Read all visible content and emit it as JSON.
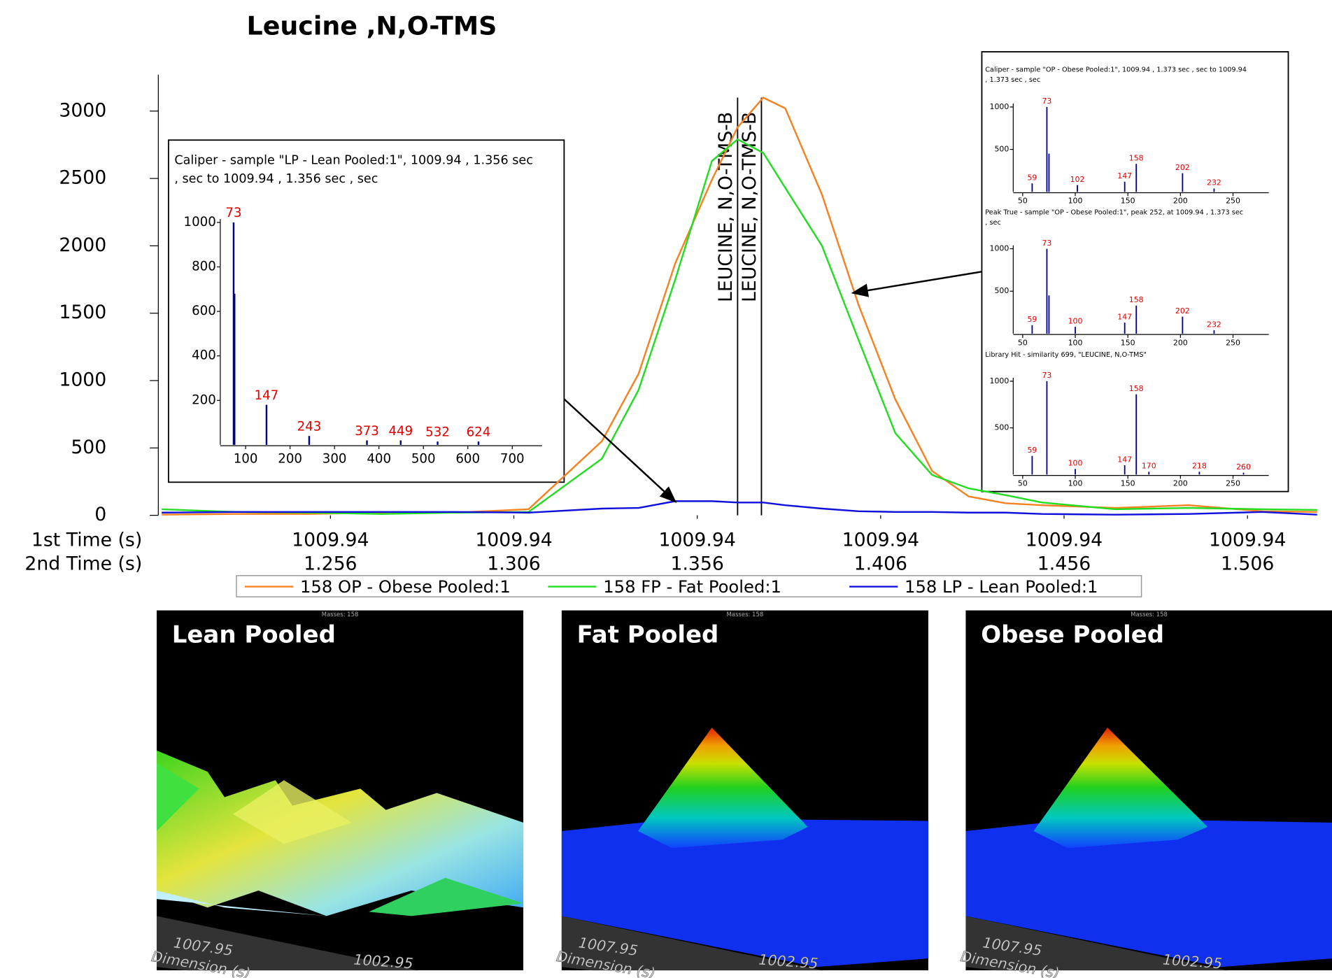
{
  "chart_data": [
    {
      "type": "line",
      "title": "Leucine ,N,O-TMS",
      "xlabel_1st": "1st Time (s)",
      "xlabel": "2nd Time (s)",
      "x": [
        1.21,
        1.23,
        1.25,
        1.27,
        1.29,
        1.31,
        1.33,
        1.34,
        1.35,
        1.36,
        1.367,
        1.374,
        1.38,
        1.39,
        1.4,
        1.41,
        1.42,
        1.43,
        1.44,
        1.45,
        1.47,
        1.49,
        1.51,
        1.525
      ],
      "xlim": [
        1.21,
        1.525
      ],
      "xticks": [
        1.256,
        1.306,
        1.356,
        1.406,
        1.456,
        1.506
      ],
      "xtick_labels_1st": [
        "1009.94",
        "1009.94",
        "1009.94",
        "1009.94",
        "1009.94",
        "1009.94"
      ],
      "ylim": [
        0,
        3270
      ],
      "yticks": [
        0,
        500,
        1000,
        1500,
        2000,
        2500,
        3000
      ],
      "series": [
        {
          "name": "158 OP - Obese Pooled:1",
          "color": "#f58220",
          "values": [
            5,
            10,
            10,
            20,
            20,
            45,
            550,
            1050,
            1870,
            2490,
            2880,
            3100,
            3020,
            2380,
            1560,
            860,
            330,
            140,
            90,
            75,
            55,
            75,
            30,
            25
          ]
        },
        {
          "name": "158 FP - Fat Pooled:1",
          "color": "#22dd22",
          "values": [
            45,
            25,
            20,
            10,
            20,
            25,
            420,
            930,
            1750,
            2630,
            2790,
            2690,
            2430,
            2000,
            1300,
            610,
            300,
            200,
            150,
            95,
            45,
            55,
            45,
            40
          ]
        },
        {
          "name": "158 LP - Lean Pooled:1",
          "color": "#1010dd",
          "values": [
            20,
            25,
            25,
            25,
            25,
            20,
            50,
            55,
            105,
            105,
            95,
            95,
            75,
            50,
            30,
            25,
            25,
            20,
            20,
            10,
            5,
            10,
            25,
            5
          ]
        }
      ],
      "annotations": [
        {
          "text": "LEUCINE, N,O-TMS-B",
          "x": 1.367
        },
        {
          "text": "LEUCINE, N,O-TMS-B",
          "x": 1.3735
        }
      ],
      "legend": "bottom"
    },
    {
      "type": "bar",
      "title_lines": [
        "Caliper - sample \"LP - Lean Pooled:1\", 1009.94 , 1.356 sec",
        ", sec to 1009.94 , 1.356 sec , sec"
      ],
      "x": [
        73,
        75,
        147,
        243,
        373,
        449,
        532,
        624
      ],
      "values": [
        1000,
        680,
        180,
        40,
        20,
        20,
        15,
        15
      ],
      "labeled": [
        true,
        false,
        true,
        true,
        true,
        true,
        true,
        true
      ],
      "xlim": [
        43,
        767
      ],
      "xticks": [
        100,
        200,
        300,
        400,
        500,
        600,
        700
      ],
      "ylim": [
        0,
        1000
      ],
      "yticks": [
        200,
        400,
        600,
        800,
        1000
      ],
      "color": "#00008b",
      "label_color": "#e00000"
    },
    {
      "type": "bar",
      "title_lines": [
        "Caliper - sample \"OP - Obese Pooled:1\", 1009.94 , 1.373 sec , sec to 1009.94",
        ", 1.373 sec , sec"
      ],
      "x": [
        59,
        73,
        75,
        102,
        147,
        158,
        202,
        232
      ],
      "values": [
        100,
        1000,
        450,
        80,
        120,
        330,
        220,
        40
      ],
      "labeled": [
        true,
        true,
        false,
        true,
        true,
        true,
        true,
        true
      ],
      "xlim": [
        41,
        284
      ],
      "xticks": [
        50,
        100,
        150,
        200,
        250
      ],
      "ylim": [
        0,
        1000
      ],
      "yticks": [
        500,
        1000
      ],
      "color": "#00008b",
      "label_color": "#e00000"
    },
    {
      "type": "bar",
      "title_lines": [
        "Peak True - sample \"OP - Obese Pooled:1\", peak 252, at 1009.94 , 1.373 sec",
        ", sec"
      ],
      "x": [
        59,
        73,
        75,
        100,
        147,
        158,
        202,
        232
      ],
      "values": [
        100,
        1000,
        450,
        80,
        130,
        330,
        200,
        40
      ],
      "labeled": [
        true,
        true,
        false,
        true,
        true,
        true,
        true,
        true
      ],
      "xlim": [
        41,
        284
      ],
      "xticks": [
        50,
        100,
        150,
        200,
        250
      ],
      "ylim": [
        0,
        1000
      ],
      "yticks": [
        500,
        1000
      ],
      "color": "#00008b",
      "label_color": "#e00000"
    },
    {
      "type": "bar",
      "title_lines": [
        "Library Hit - similarity 699, \"LEUCINE, N,O-TMS\""
      ],
      "x": [
        59,
        73,
        100,
        147,
        158,
        170,
        218,
        260
      ],
      "values": [
        200,
        1000,
        60,
        100,
        860,
        30,
        30,
        20
      ],
      "labeled": [
        true,
        true,
        true,
        true,
        true,
        true,
        true,
        true
      ],
      "xlim": [
        41,
        284
      ],
      "xticks": [
        50,
        100,
        150,
        200,
        250
      ],
      "ylim": [
        0,
        1000
      ],
      "yticks": [
        500,
        1000
      ],
      "color": "#00008b",
      "label_color": "#e00000"
    }
  ],
  "images": [
    {
      "title": "Lean Pooled",
      "masses": "Masses: 158",
      "axis_labels": [
        "1007.95",
        "Dimension (s)",
        "1002.95"
      ]
    },
    {
      "title": "Fat Pooled",
      "masses": "Masses: 158",
      "axis_labels": [
        "1007.95",
        "Dimension (s)",
        "1002.95"
      ]
    },
    {
      "title": "Obese Pooled",
      "masses": "Masses: 158",
      "axis_labels": [
        "1007.95",
        "Dimension (s)",
        "1002.95"
      ]
    }
  ]
}
